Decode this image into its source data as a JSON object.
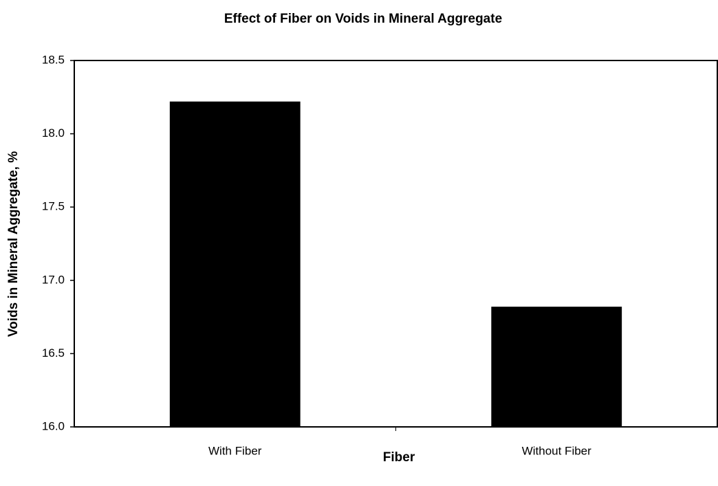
{
  "chart_data": {
    "type": "bar",
    "title": "Effect of Fiber on Voids in Mineral Aggregate",
    "x_label": "Fiber",
    "y_label": "Voids in Mineral Aggregate, %",
    "categories": [
      "With Fiber",
      "Without Fiber"
    ],
    "values": [
      18.22,
      16.82
    ],
    "color": "#000000",
    "ylim": [
      16,
      18.5
    ],
    "yticks": [
      {
        "value": 16,
        "label": "16.0"
      },
      16.5,
      {
        "value": 17,
        "label": "17.0"
      },
      17.5,
      {
        "value": 18,
        "label": "18.0"
      },
      18.5
    ],
    "grid": false
  }
}
